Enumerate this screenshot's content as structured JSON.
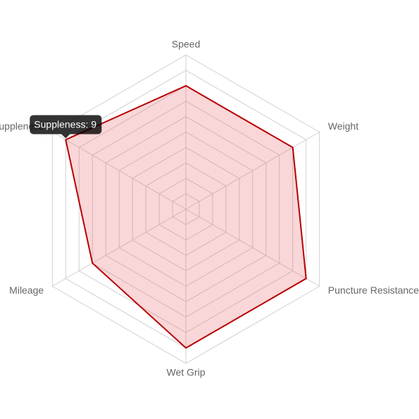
{
  "chart_data": {
    "type": "radar",
    "categories": [
      "Speed",
      "Weight",
      "Puncture Resistance",
      "Wet Grip",
      "Mileage",
      "Suppleness"
    ],
    "series": [
      {
        "values": [
          8,
          8,
          9,
          9,
          7,
          9
        ],
        "color": "#b80000",
        "fill": "rgba(230,90,100,0.25)"
      }
    ],
    "ylim": [
      0,
      10
    ],
    "yticks": [
      0,
      1,
      2,
      3,
      4,
      5,
      6,
      7,
      8,
      9,
      10
    ],
    "grid": true,
    "tooltip": {
      "text": "Suppleness: 9",
      "index": 5
    }
  }
}
